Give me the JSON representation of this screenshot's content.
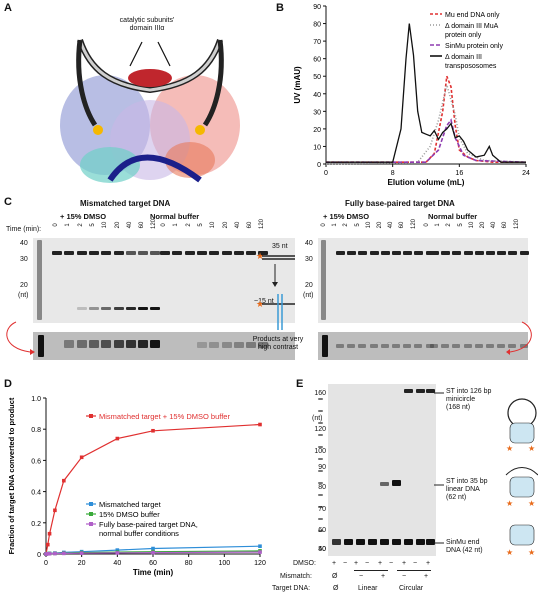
{
  "panels": {
    "A": {
      "letter": "A",
      "callout": "catalytic subunits'\ndomain IIIα"
    },
    "B": {
      "letter": "B"
    },
    "C": {
      "letter": "C",
      "left_title": "Mismatched target DNA",
      "right_title": "Fully base-paired target DNA",
      "dmso_label": "+ 15% DMSO",
      "normal_label": "Normal buffer",
      "time_label": "Time (min):",
      "times": [
        "0",
        "1",
        "2",
        "5",
        "10",
        "20",
        "40",
        "60",
        "120"
      ],
      "size_ticks": [
        "40",
        "30",
        "20",
        "(nt)"
      ],
      "nt35": "35 nt",
      "nt15": "~15 nt",
      "contrast_note": "Products at very\nhigh contrast"
    },
    "D": {
      "letter": "D"
    },
    "E": {
      "letter": "E",
      "nt_label": "(nt)",
      "size_ticks": [
        "160",
        "120",
        "100",
        "90",
        "80",
        "70",
        "60",
        "50",
        "40"
      ],
      "dmso_row_label": "DMSO:",
      "dmso_row": [
        "+",
        "−",
        "+",
        "−",
        "+",
        "−",
        "+",
        "−",
        "+"
      ],
      "mismatch_label": "Mismatch:",
      "mismatch_row": [
        "Ø",
        "−",
        "+",
        "−",
        "+"
      ],
      "target_label": "Target DNA:",
      "target_row": [
        "Ø",
        "Linear",
        "Circular"
      ],
      "annot_top": "ST into 126 bp\nminicircle\n(168 nt)",
      "annot_mid": "ST into 35 bp\nlinear DNA\n(62 nt)",
      "annot_bot": "SinMu end\nDNA (42 nt)"
    }
  },
  "chart_data": [
    {
      "type": "line",
      "panel": "B",
      "xlabel": "Elution volume (mL)",
      "ylabel": "UV (mAU)",
      "xlim": [
        0,
        24
      ],
      "ylim": [
        0,
        90
      ],
      "xticks": [
        0,
        8,
        16,
        24
      ],
      "yticks": [
        0,
        10,
        20,
        30,
        40,
        50,
        60,
        70,
        80,
        90
      ],
      "legend_placement": "top-right",
      "series": [
        {
          "name": "Mu end DNA only",
          "color": "#e03030",
          "dash": "3,2",
          "x": [
            0,
            12,
            13,
            14,
            14.5,
            15,
            15.5,
            16,
            17,
            18,
            20,
            24
          ],
          "y": [
            1,
            1,
            6,
            30,
            50,
            44,
            22,
            8,
            4,
            2,
            1,
            1
          ]
        },
        {
          "name": "Δ domain III MuA protein only",
          "color": "#999999",
          "dash": "1,2",
          "x": [
            0,
            11,
            12.5,
            13.5,
            14.5,
            15.5,
            16,
            17,
            19,
            24
          ],
          "y": [
            0,
            1,
            10,
            25,
            45,
            28,
            15,
            6,
            2,
            1
          ]
        },
        {
          "name": "SinMu protein only",
          "color": "#8e3bb0",
          "dash": "4,2",
          "x": [
            0,
            12,
            13.5,
            14.5,
            15,
            15.5,
            16.5,
            18,
            24
          ],
          "y": [
            1,
            1,
            8,
            22,
            25,
            15,
            5,
            2,
            1
          ]
        },
        {
          "name": "Δ domain III transpososomes",
          "color": "#111111",
          "dash": "",
          "x": [
            0,
            8,
            9,
            9.6,
            10,
            10.5,
            11,
            11.5,
            12,
            12.5,
            13,
            13.5,
            14,
            14.5,
            15,
            15.5,
            16,
            16.5,
            17,
            18,
            19,
            19.6,
            20,
            21,
            24
          ],
          "y": [
            1,
            1,
            20,
            60,
            80,
            62,
            30,
            18,
            17,
            16,
            19,
            14,
            18,
            20,
            23,
            15,
            16,
            13,
            8,
            4,
            5,
            10,
            5,
            1,
            1
          ]
        }
      ]
    },
    {
      "type": "line",
      "panel": "D",
      "xlabel": "Time (min)",
      "ylabel": "Fraction of target DNA converted to product",
      "xlim": [
        0,
        120
      ],
      "ylim": [
        0,
        1.0
      ],
      "xticks": [
        0,
        20,
        40,
        60,
        80,
        100,
        120
      ],
      "yticks": [
        0,
        0.2,
        0.4,
        0.6,
        0.8,
        1.0
      ],
      "series": [
        {
          "name": "Mismatched target + 15% DMSO buffer",
          "color": "#e03030",
          "x": [
            0,
            1,
            2,
            5,
            10,
            20,
            40,
            60,
            120
          ],
          "y": [
            0,
            0.06,
            0.13,
            0.28,
            0.47,
            0.62,
            0.74,
            0.79,
            0.83
          ]
        },
        {
          "name": "Mismatched target",
          "color": "#2e8ed8",
          "x": [
            0,
            1,
            2,
            5,
            10,
            20,
            40,
            60,
            120
          ],
          "y": [
            0,
            0.002,
            0.004,
            0.006,
            0.01,
            0.015,
            0.025,
            0.035,
            0.05
          ]
        },
        {
          "name": "15% DMSO buffer",
          "color": "#3aaa3a",
          "x": [
            0,
            1,
            2,
            5,
            10,
            20,
            40,
            60,
            120
          ],
          "y": [
            0,
            0.002,
            0.003,
            0.004,
            0.006,
            0.009,
            0.012,
            0.015,
            0.02
          ]
        },
        {
          "name": "Fully base-paired target DNA,\nnormal buffer conditions",
          "color": "#b05fc8",
          "x": [
            0,
            1,
            2,
            5,
            10,
            20,
            40,
            60,
            120
          ],
          "y": [
            0,
            0.001,
            0.002,
            0.003,
            0.004,
            0.005,
            0.007,
            0.009,
            0.012
          ]
        }
      ]
    }
  ]
}
